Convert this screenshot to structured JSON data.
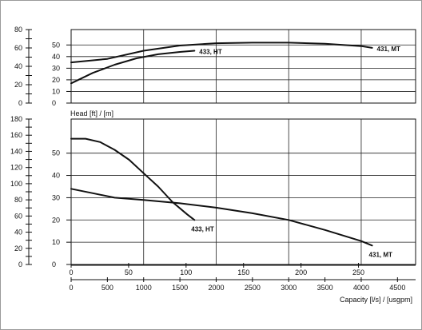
{
  "chart_data": [
    {
      "type": "line",
      "panel": "efficiency",
      "outer_ticks": [
        "80",
        "60",
        "40",
        "20",
        "0"
      ],
      "inner_ticks": [
        "50",
        "40",
        "30",
        "20",
        "10",
        "0"
      ],
      "inner_ylim": [
        0,
        55
      ],
      "x_range": [
        0,
        4750
      ],
      "series": [
        {
          "name": "433, HT",
          "x": [
            0,
            300,
            600,
            900,
            1200,
            1500,
            1700
          ],
          "y": [
            17,
            26,
            33,
            38.5,
            42,
            44,
            45
          ]
        },
        {
          "name": "431, MT",
          "x": [
            0,
            500,
            1000,
            1500,
            2000,
            2500,
            3000,
            3500,
            4000,
            4150
          ],
          "y": [
            35,
            38,
            45,
            49.5,
            51.5,
            52,
            52,
            51,
            49,
            47.5
          ]
        }
      ]
    },
    {
      "type": "line",
      "panel": "head",
      "title": "Head [ft] / [m]",
      "outer_ticks": [
        "180",
        "160",
        "140",
        "120",
        "100",
        "80",
        "60",
        "40",
        "20",
        "0"
      ],
      "inner_ticks": [
        "50",
        "40",
        "30",
        "20",
        "10",
        "0"
      ],
      "inner_ylim": [
        0,
        58.5
      ],
      "x_range": [
        0,
        4750
      ],
      "xlabel": "Capacity [l/s] / [usgpm]",
      "x_ticks_ls": [
        "0",
        "50",
        "100",
        "150",
        "200",
        "250"
      ],
      "x_ticks_usgpm": [
        "0",
        "500",
        "1000",
        "1500",
        "2000",
        "2500",
        "3000",
        "3500",
        "4000",
        "4500"
      ],
      "series": [
        {
          "name": "433, HT",
          "x": [
            0,
            200,
            400,
            600,
            800,
            1000,
            1200,
            1400,
            1600,
            1700
          ],
          "y": [
            56.5,
            56.5,
            55,
            51.5,
            47,
            41,
            35,
            28,
            22.5,
            20
          ]
        },
        {
          "name": "431, MT",
          "x": [
            0,
            300,
            600,
            1000,
            1500,
            2000,
            2500,
            3000,
            3500,
            4000,
            4150
          ],
          "y": [
            34,
            32,
            30,
            29,
            27.5,
            25.5,
            23,
            20,
            15.5,
            10.5,
            8.5
          ]
        }
      ]
    }
  ]
}
